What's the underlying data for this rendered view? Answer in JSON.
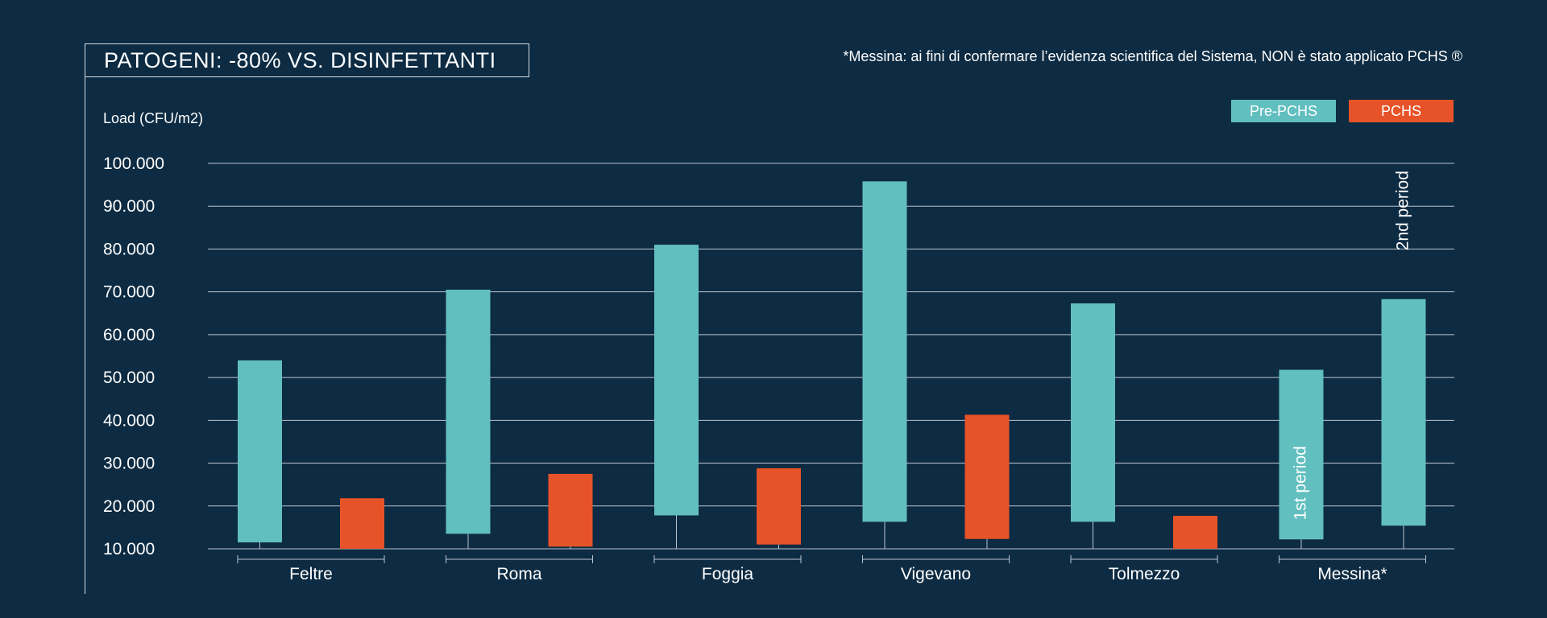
{
  "header": {
    "title": "PATOGENI: -80% VS. DISINFETTANTI",
    "note": "*Messina: ai fini di confermare l’evidenza scientifica del Sistema, NON è stato applicato PCHS ®"
  },
  "legend": [
    {
      "label": "Pre-PCHS",
      "color": "#62bfbf"
    },
    {
      "label": "PCHS",
      "color": "#e65328"
    }
  ],
  "chart_data": {
    "type": "bar",
    "title": "PATOGENI: -80% VS. DISINFETTANTI",
    "ylabel": "Load (CFU/m2)",
    "ylim": [
      10000,
      100000
    ],
    "yticks": [
      {
        "value": 100000,
        "label": "100.000"
      },
      {
        "value": 90000,
        "label": "90.000"
      },
      {
        "value": 80000,
        "label": "80.000"
      },
      {
        "value": 70000,
        "label": "70.000"
      },
      {
        "value": 60000,
        "label": "60.000"
      },
      {
        "value": 50000,
        "label": "50.000"
      },
      {
        "value": 40000,
        "label": "40.000"
      },
      {
        "value": 30000,
        "label": "30.000"
      },
      {
        "value": 20000,
        "label": "20.000"
      },
      {
        "value": 10000,
        "label": "10.000"
      }
    ],
    "categories": [
      "Feltre",
      "Roma",
      "Foggia",
      "Vigevano",
      "Tolmezzo",
      "Messina*"
    ],
    "grid": true,
    "legend_position": "top-right",
    "series": [
      {
        "name": "Pre-PCHS",
        "color": "#62bfbf",
        "ranges": [
          [
            11500,
            54000
          ],
          [
            13500,
            70500
          ],
          [
            17800,
            81000
          ],
          [
            16300,
            95800
          ],
          [
            16300,
            67300
          ],
          [
            12200,
            51800
          ]
        ]
      },
      {
        "name": "PCHS",
        "color": "#e65328",
        "ranges": [
          [
            10000,
            21800
          ],
          [
            10500,
            27500
          ],
          [
            11000,
            28800
          ],
          [
            12300,
            41300
          ],
          [
            10000,
            17700
          ],
          [
            15400,
            68300
          ]
        ],
        "last_bar_color": "#62bfbf"
      }
    ],
    "bar_labels": [
      {
        "category": "Messina*",
        "series": "Pre-PCHS",
        "text": "1st period"
      },
      {
        "category": "Messina*",
        "series": "PCHS",
        "text": "2nd period"
      }
    ]
  }
}
